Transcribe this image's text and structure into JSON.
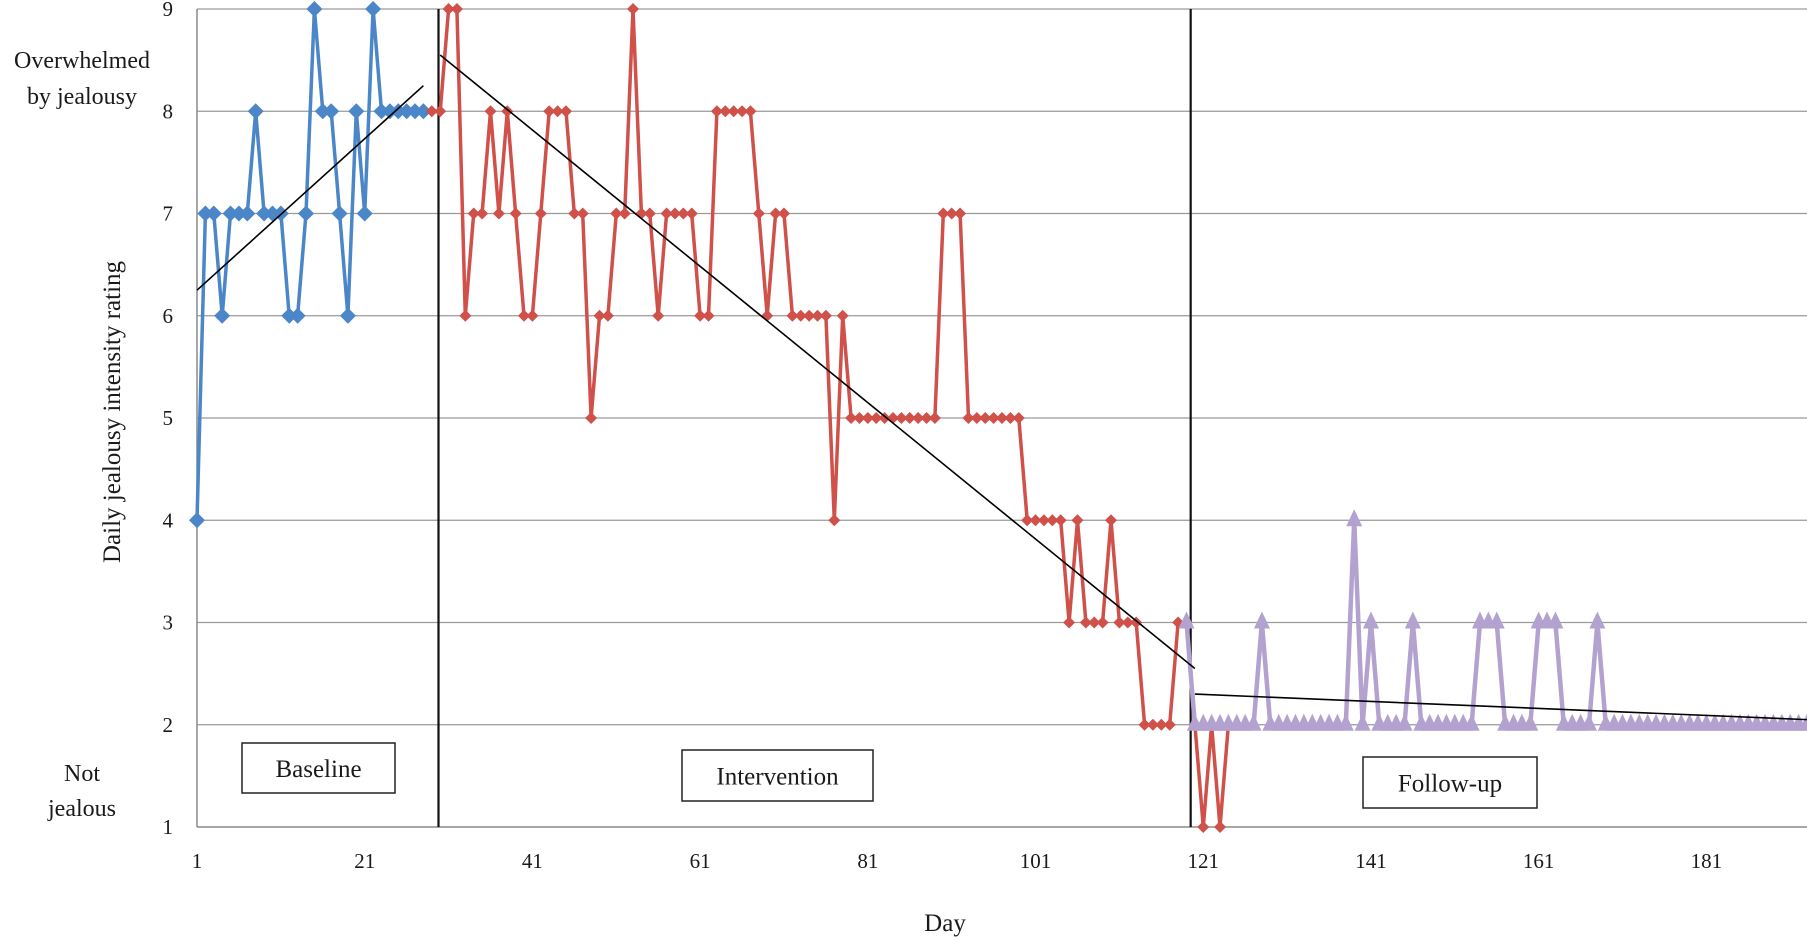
{
  "chart_data": {
    "type": "line",
    "xlabel": "Day",
    "ylabel": "Daily jealousy intensity rating",
    "ylim": [
      1,
      9
    ],
    "xlim": [
      1,
      193
    ],
    "y_ticks": [
      1,
      2,
      3,
      4,
      5,
      6,
      7,
      8,
      9
    ],
    "x_ticks": [
      1,
      21,
      41,
      61,
      81,
      101,
      121,
      141,
      161,
      181
    ],
    "gridlines": "horizontal",
    "legend": "none",
    "y_end_labels": {
      "top": [
        "Overwhelmed",
        "by jealousy"
      ],
      "bottom": [
        "Not",
        "jealous"
      ]
    },
    "phase_labels": [
      "Baseline",
      "Intervention",
      "Follow-up"
    ],
    "phase_dividers": [
      29.8,
      119.5
    ],
    "series": [
      {
        "color": "#4a86c8",
        "marker": "diamond",
        "x_start": 1,
        "values": [
          4,
          7,
          7,
          6,
          7,
          7,
          7,
          8,
          7,
          7,
          7,
          6,
          6,
          7,
          9,
          8,
          8,
          7,
          6,
          8,
          7,
          9,
          8,
          8,
          8,
          8,
          8,
          8
        ]
      },
      {
        "color": "#d0504a",
        "marker": "diamond",
        "x_start": 29,
        "values": [
          8,
          8,
          9,
          9,
          6,
          7,
          7,
          8,
          7,
          8,
          7,
          6,
          6,
          7,
          8,
          8,
          8,
          7,
          7,
          5,
          6,
          6,
          7,
          7,
          9,
          7,
          7,
          6,
          7,
          7,
          7,
          7,
          6,
          6,
          8,
          8,
          8,
          8,
          8,
          7,
          6,
          7,
          7,
          6,
          6,
          6,
          6,
          6,
          4,
          6,
          5,
          5,
          5,
          5,
          5,
          5,
          5,
          5,
          5,
          5,
          5,
          7,
          7,
          7,
          5,
          5,
          5,
          5,
          5,
          5,
          5,
          4,
          4,
          4,
          4,
          4,
          3,
          4,
          3,
          3,
          3,
          4,
          3,
          3,
          3,
          2,
          2,
          2,
          2,
          3,
          3,
          2,
          1,
          2,
          1,
          2,
          2
        ]
      },
      {
        "color": "#b3a2cf",
        "marker": "triangle",
        "x_start": 119,
        "values": [
          3,
          2,
          2,
          2,
          2,
          2,
          2,
          2,
          2,
          3,
          2,
          2,
          2,
          2,
          2,
          2,
          2,
          2,
          2,
          2,
          4,
          2,
          3,
          2,
          2,
          2,
          2,
          3,
          2,
          2,
          2,
          2,
          2,
          2,
          2,
          3,
          3,
          3,
          2,
          2,
          2,
          2,
          3,
          3,
          3,
          2,
          2,
          2,
          2,
          3,
          2,
          2,
          2,
          2,
          2,
          2,
          2,
          2,
          2,
          2,
          2,
          2,
          2,
          2,
          2,
          2,
          2,
          2,
          2,
          2,
          2,
          2,
          2,
          2,
          2
        ]
      }
    ],
    "trend_lines": [
      {
        "x": [
          1,
          28
        ],
        "y": [
          6.25,
          8.25
        ]
      },
      {
        "x": [
          30,
          120
        ],
        "y": [
          8.55,
          2.55
        ]
      },
      {
        "x": [
          120,
          193
        ],
        "y": [
          2.3,
          2.05
        ]
      }
    ]
  }
}
